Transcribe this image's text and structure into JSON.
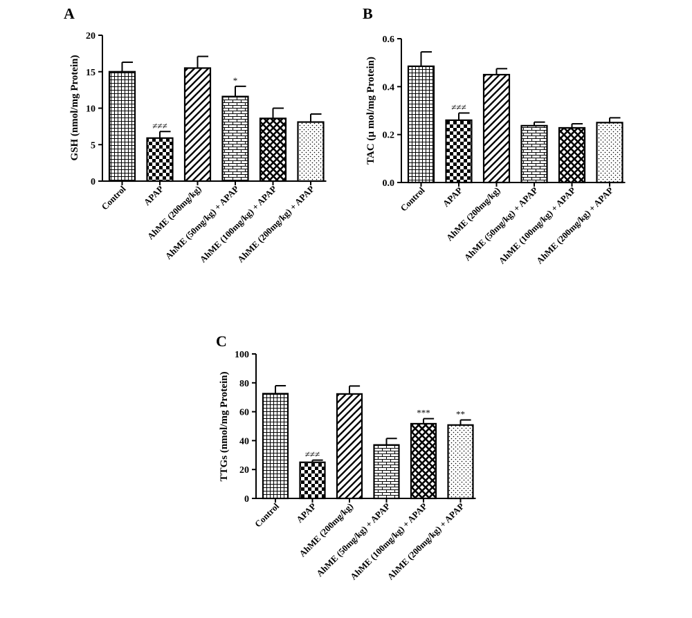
{
  "chart_data": [
    {
      "panel": "A",
      "type": "bar",
      "ylabel": "GSH (nmol/mg Protein)",
      "ylim": [
        0,
        20
      ],
      "yticks": [
        0,
        5,
        10,
        15,
        20
      ],
      "categories": [
        "Control",
        "APAP",
        "AhME (200mg/kg)",
        "AhME (50mg/kg) + APAP",
        "AhME (100mg/kg) + APAP",
        "AhME (200mg/kg) + APAP"
      ],
      "values": [
        15.0,
        5.9,
        15.5,
        11.6,
        8.6,
        8.1
      ],
      "errors": [
        1.3,
        0.9,
        1.6,
        1.4,
        1.4,
        1.1
      ],
      "annotations": [
        "",
        "≠≠≠",
        "",
        "*",
        "",
        ""
      ],
      "patterns": [
        "grid",
        "checker",
        "diag",
        "brick",
        "crosshatch",
        "dots"
      ]
    },
    {
      "panel": "B",
      "type": "bar",
      "ylabel": "TAC (µ mol/mg Protein)",
      "ylim": [
        0,
        0.6
      ],
      "yticks": [
        "0.0",
        "0.2",
        "0.4",
        "0.6"
      ],
      "categories": [
        "Control",
        "APAP",
        "AhME (200mg/kg)",
        "AhME (50mg/kg) + APAP",
        "AhME (100mg/kg) + APAP",
        "AhME (200mg/kg) + APAP"
      ],
      "values": [
        0.485,
        0.26,
        0.45,
        0.237,
        0.228,
        0.25
      ],
      "errors": [
        0.06,
        0.03,
        0.025,
        0.015,
        0.017,
        0.02
      ],
      "annotations": [
        "",
        "≠≠≠",
        "",
        "",
        "",
        ""
      ],
      "patterns": [
        "grid",
        "checker",
        "diag",
        "brick",
        "crosshatch",
        "dots"
      ]
    },
    {
      "panel": "C",
      "type": "bar",
      "ylabel": "TTGs (nmol/mg Protein)",
      "ylim": [
        0,
        100
      ],
      "yticks": [
        0,
        20,
        40,
        60,
        80,
        100
      ],
      "categories": [
        "Control",
        "APAP",
        "AhME (200mg/kg)",
        "AhME (50mg/kg) + APAP",
        "AhME (100mg/kg) + APAP",
        "AhME (200mg/kg) + APAP"
      ],
      "values": [
        72.5,
        25.0,
        72.3,
        37.0,
        51.7,
        50.8
      ],
      "errors": [
        5.5,
        1.5,
        5.5,
        4.5,
        3.5,
        3.5
      ],
      "annotations": [
        "",
        "≠≠≠",
        "",
        "",
        "***",
        "**"
      ],
      "patterns": [
        "grid",
        "checker",
        "diag",
        "brick",
        "crosshatch",
        "dots"
      ]
    }
  ]
}
